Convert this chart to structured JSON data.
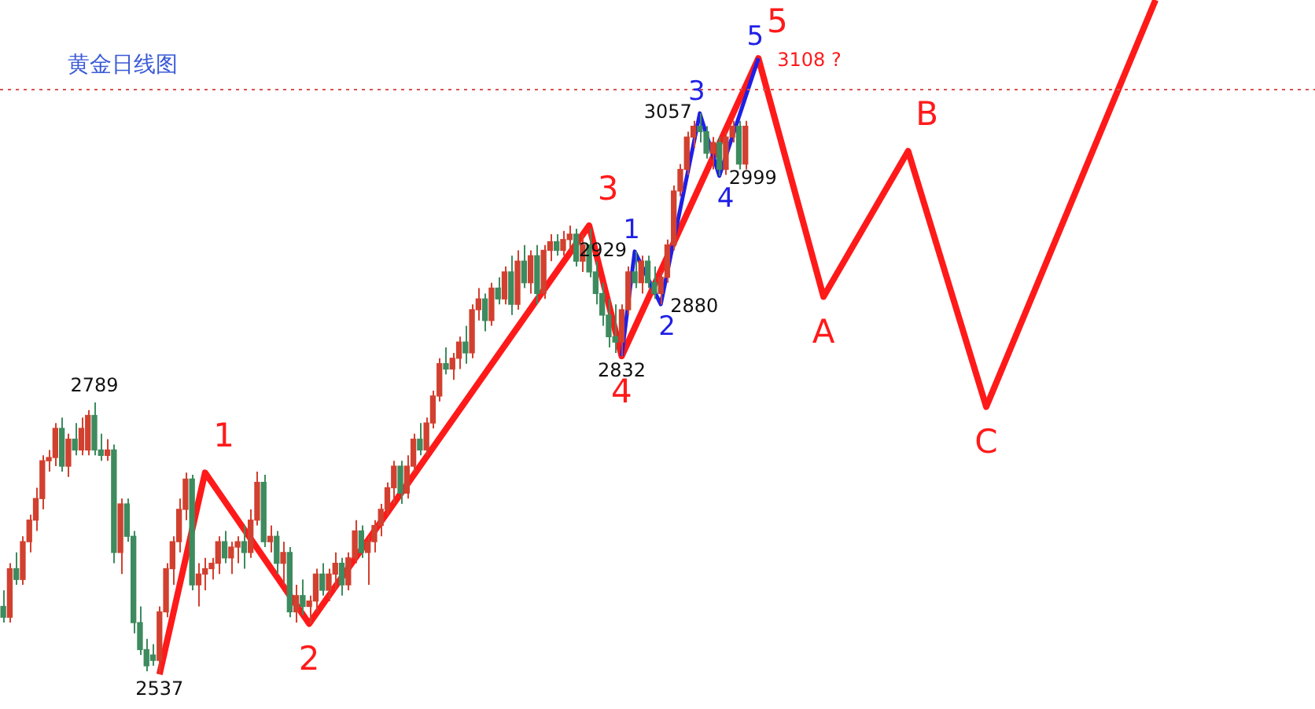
{
  "chart_data": {
    "type": "candlestick",
    "title": "黄金日线图",
    "categories": [
      null,
      null,
      null,
      null,
      null,
      null,
      null,
      null,
      null,
      null,
      null,
      null,
      null,
      null,
      null,
      null,
      null,
      null,
      null,
      null,
      null,
      null,
      null,
      null,
      null,
      null,
      null,
      null,
      null,
      null,
      null,
      null,
      null,
      null,
      null,
      null,
      null,
      null,
      null,
      null,
      null,
      null,
      null,
      null,
      null,
      null,
      null,
      null,
      null,
      null,
      null,
      null,
      null,
      null,
      null,
      null,
      null,
      null,
      null,
      null,
      null,
      null,
      null,
      null,
      null,
      null,
      null,
      null,
      null,
      null,
      null,
      null,
      null,
      null,
      null,
      null,
      null,
      null,
      null,
      null,
      null,
      null,
      null,
      null,
      null,
      null,
      null,
      null,
      null,
      null,
      null,
      null,
      null,
      null,
      null,
      null,
      null,
      null,
      null,
      null,
      null,
      null,
      null,
      null,
      null,
      null,
      null,
      null,
      null,
      null,
      null,
      null,
      null,
      null,
      null,
      null,
      null,
      null,
      null,
      null,
      null,
      null,
      null,
      null,
      null,
      null,
      null,
      null,
      null,
      null,
      null,
      null,
      null,
      null,
      null,
      null,
      null,
      null,
      null,
      null,
      null,
      null,
      null,
      null,
      null,
      null,
      null,
      null,
      null,
      null,
      null,
      null,
      null,
      null,
      null,
      null,
      null,
      null,
      null,
      null,
      null,
      null,
      null,
      null,
      null,
      null,
      null,
      null,
      null,
      null,
      null,
      null,
      null,
      null,
      null,
      null,
      null,
      null,
      null,
      null,
      null,
      null,
      null,
      null,
      null,
      null,
      null,
      null,
      null,
      null,
      null,
      null,
      null,
      null,
      null,
      null,
      null,
      null,
      null,
      null,
      null,
      null
    ],
    "ohlc": [
      [
        2600,
        2615,
        2585,
        2590
      ],
      [
        2590,
        2640,
        2585,
        2635
      ],
      [
        2635,
        2650,
        2620,
        2625
      ],
      [
        2625,
        2665,
        2620,
        2660
      ],
      [
        2660,
        2685,
        2650,
        2680
      ],
      [
        2680,
        2710,
        2670,
        2700
      ],
      [
        2700,
        2740,
        2690,
        2735
      ],
      [
        2735,
        2745,
        2725,
        2738
      ],
      [
        2738,
        2770,
        2730,
        2765
      ],
      [
        2765,
        2775,
        2725,
        2730
      ],
      [
        2730,
        2760,
        2720,
        2755
      ],
      [
        2755,
        2770,
        2740,
        2745
      ],
      [
        2745,
        2775,
        2740,
        2765
      ],
      [
        2745,
        2782,
        2740,
        2777
      ],
      [
        2777,
        2789,
        2740,
        2745
      ],
      [
        2745,
        2760,
        2735,
        2740
      ],
      [
        2740,
        2755,
        2735,
        2745
      ],
      [
        2745,
        2750,
        2640,
        2650
      ],
      [
        2650,
        2700,
        2630,
        2695
      ],
      [
        2695,
        2700,
        2660,
        2665
      ],
      [
        2665,
        2670,
        2575,
        2585
      ],
      [
        2585,
        2600,
        2555,
        2560
      ],
      [
        2560,
        2570,
        2540,
        2545
      ],
      [
        2555,
        2565,
        2545,
        2550
      ],
      [
        2550,
        2600,
        2537,
        2595
      ],
      [
        2595,
        2640,
        2590,
        2635
      ],
      [
        2635,
        2665,
        2620,
        2660
      ],
      [
        2660,
        2700,
        2650,
        2690
      ],
      [
        2690,
        2724,
        2680,
        2718
      ],
      [
        2718,
        2722,
        2615,
        2620
      ],
      [
        2620,
        2640,
        2600,
        2630
      ],
      [
        2630,
        2645,
        2615,
        2635
      ],
      [
        2635,
        2645,
        2625,
        2640
      ],
      [
        2640,
        2665,
        2630,
        2660
      ],
      [
        2660,
        2670,
        2640,
        2645
      ],
      [
        2645,
        2660,
        2630,
        2655
      ],
      [
        2655,
        2665,
        2640,
        2660
      ],
      [
        2660,
        2675,
        2635,
        2650
      ],
      [
        2650,
        2690,
        2645,
        2680
      ],
      [
        2680,
        2725,
        2675,
        2715
      ],
      [
        2715,
        2722,
        2655,
        2660
      ],
      [
        2660,
        2675,
        2650,
        2665
      ],
      [
        2665,
        2670,
        2630,
        2640
      ],
      [
        2640,
        2660,
        2620,
        2650
      ],
      [
        2650,
        2655,
        2590,
        2595
      ],
      [
        2595,
        2620,
        2585,
        2610
      ],
      [
        2610,
        2625,
        2592,
        2600
      ],
      [
        2600,
        2610,
        2584,
        2605
      ],
      [
        2605,
        2635,
        2595,
        2630
      ],
      [
        2630,
        2640,
        2610,
        2615
      ],
      [
        2615,
        2635,
        2605,
        2630
      ],
      [
        2630,
        2650,
        2615,
        2640
      ],
      [
        2640,
        2645,
        2610,
        2620
      ],
      [
        2620,
        2650,
        2615,
        2645
      ],
      [
        2645,
        2680,
        2640,
        2670
      ],
      [
        2670,
        2675,
        2645,
        2650
      ],
      [
        2650,
        2665,
        2620,
        2660
      ],
      [
        2660,
        2680,
        2650,
        2675
      ],
      [
        2675,
        2695,
        2665,
        2690
      ],
      [
        2690,
        2715,
        2685,
        2710
      ],
      [
        2710,
        2735,
        2695,
        2730
      ],
      [
        2730,
        2735,
        2695,
        2705
      ],
      [
        2705,
        2740,
        2700,
        2730
      ],
      [
        2730,
        2760,
        2725,
        2755
      ],
      [
        2755,
        2770,
        2740,
        2745
      ],
      [
        2745,
        2775,
        2740,
        2770
      ],
      [
        2770,
        2800,
        2765,
        2795
      ],
      [
        2795,
        2830,
        2790,
        2825
      ],
      [
        2825,
        2840,
        2815,
        2820
      ],
      [
        2820,
        2835,
        2810,
        2830
      ],
      [
        2830,
        2850,
        2820,
        2845
      ],
      [
        2845,
        2860,
        2825,
        2835
      ],
      [
        2835,
        2880,
        2830,
        2875
      ],
      [
        2875,
        2895,
        2865,
        2885
      ],
      [
        2885,
        2890,
        2855,
        2865
      ],
      [
        2865,
        2900,
        2860,
        2895
      ],
      [
        2895,
        2905,
        2880,
        2885
      ],
      [
        2885,
        2915,
        2880,
        2910
      ],
      [
        2910,
        2925,
        2870,
        2880
      ],
      [
        2880,
        2930,
        2875,
        2920
      ],
      [
        2920,
        2935,
        2895,
        2900
      ],
      [
        2900,
        2930,
        2890,
        2925
      ],
      [
        2925,
        2935,
        2880,
        2890
      ],
      [
        2890,
        2935,
        2885,
        2930
      ],
      [
        2930,
        2945,
        2920,
        2938
      ],
      [
        2938,
        2945,
        2925,
        2930
      ],
      [
        2930,
        2948,
        2925,
        2940
      ],
      [
        2940,
        2953,
        2930,
        2945
      ],
      [
        2945,
        2950,
        2915,
        2920
      ],
      [
        2920,
        2945,
        2910,
        2935
      ],
      [
        2935,
        2950,
        2905,
        2910
      ],
      [
        2910,
        2920,
        2880,
        2890
      ],
      [
        2890,
        2900,
        2860,
        2870
      ],
      [
        2870,
        2885,
        2840,
        2850
      ],
      [
        2850,
        2880,
        2835,
        2845
      ],
      [
        2845,
        2880,
        2832,
        2875
      ],
      [
        2875,
        2915,
        2870,
        2910
      ],
      [
        2910,
        2929,
        2895,
        2900
      ],
      [
        2900,
        2925,
        2890,
        2920
      ],
      [
        2920,
        2925,
        2895,
        2900
      ],
      [
        2900,
        2915,
        2885,
        2890
      ],
      [
        2890,
        2910,
        2880,
        2905
      ],
      [
        2905,
        2940,
        2900,
        2935
      ],
      [
        2935,
        2990,
        2930,
        2985
      ],
      [
        2985,
        3010,
        2980,
        3005
      ],
      [
        3005,
        3040,
        3000,
        3035
      ],
      [
        3035,
        3050,
        3025,
        3045
      ],
      [
        3045,
        3057,
        3030,
        3040
      ],
      [
        3040,
        3045,
        3015,
        3020
      ],
      [
        3020,
        3035,
        3005,
        3030
      ],
      [
        3030,
        3035,
        2999,
        3005
      ],
      [
        3005,
        3040,
        3000,
        3035
      ],
      [
        3035,
        3050,
        3030,
        3045
      ],
      [
        3045,
        3050,
        3005,
        3010
      ],
      [
        3010,
        3050,
        3005,
        3045
      ],
      null,
      null,
      null,
      null,
      null,
      null,
      null,
      null,
      null,
      null,
      null,
      null,
      null,
      null,
      null,
      null,
      null,
      null,
      null,
      null,
      null,
      null,
      null,
      null,
      null,
      null,
      null,
      null,
      null,
      null,
      null,
      null,
      null,
      null,
      null,
      null,
      null,
      null,
      null,
      null,
      null,
      null,
      null,
      null,
      null,
      null,
      null,
      null,
      null,
      null,
      null,
      null,
      null,
      null,
      null,
      null,
      null,
      null,
      null,
      null,
      null,
      null,
      null,
      null,
      null,
      null,
      null,
      null,
      null,
      null,
      null,
      null,
      null,
      null,
      null,
      null,
      null,
      null,
      null,
      null,
      null,
      null,
      null,
      null,
      null,
      null,
      null
    ],
    "colors": [
      "#3d8b5e",
      "#d2402f",
      "#3d8b5e",
      "#d2402f",
      "#d2402f",
      "#d2402f",
      "#d2402f",
      "#d2402f",
      "#d2402f",
      "#3d8b5e",
      "#d2402f",
      "#3d8b5e",
      "#d2402f",
      "#d2402f",
      "#3d8b5e",
      "#3d8b5e",
      "#d2402f",
      "#3d8b5e",
      "#d2402f",
      "#3d8b5e",
      "#3d8b5e",
      "#3d8b5e",
      "#3d8b5e",
      "#3d8b5e",
      "#d2402f",
      "#d2402f",
      "#d2402f",
      "#d2402f",
      "#d2402f",
      "#3d8b5e",
      "#d2402f",
      "#d2402f",
      "#d2402f",
      "#d2402f",
      "#3d8b5e",
      "#d2402f",
      "#d2402f",
      "#3d8b5e",
      "#d2402f",
      "#d2402f",
      "#3d8b5e",
      "#d2402f",
      "#3d8b5e",
      "#d2402f",
      "#3d8b5e",
      "#d2402f",
      "#3d8b5e",
      "#d2402f",
      "#d2402f",
      "#3d8b5e",
      "#d2402f",
      "#d2402f",
      "#3d8b5e",
      "#d2402f",
      "#d2402f",
      "#3d8b5e",
      "#d2402f",
      "#d2402f",
      "#d2402f",
      "#d2402f",
      "#d2402f",
      "#3d8b5e",
      "#d2402f",
      "#d2402f",
      "#3d8b5e",
      "#d2402f",
      "#d2402f",
      "#d2402f",
      "#3d8b5e",
      "#d2402f",
      "#d2402f",
      "#3d8b5e",
      "#d2402f",
      "#d2402f",
      "#3d8b5e",
      "#d2402f",
      "#3d8b5e",
      "#d2402f",
      "#3d8b5e",
      "#d2402f",
      "#3d8b5e",
      "#d2402f",
      "#3d8b5e",
      "#d2402f",
      "#d2402f",
      "#3d8b5e",
      "#d2402f",
      "#d2402f",
      "#3d8b5e",
      "#d2402f",
      "#3d8b5e",
      "#3d8b5e",
      "#3d8b5e",
      "#3d8b5e",
      "#3d8b5e",
      "#d2402f",
      "#d2402f",
      "#3d8b5e",
      "#d2402f",
      "#3d8b5e",
      "#3d8b5e",
      "#d2402f",
      "#d2402f",
      "#d2402f",
      "#d2402f",
      "#d2402f",
      "#d2402f",
      "#3d8b5e",
      "#3d8b5e",
      "#d2402f",
      "#3d8b5e",
      "#d2402f",
      "#d2402f",
      "#3d8b5e",
      "#d2402f",
      null,
      null,
      null,
      null,
      null,
      null,
      null,
      null,
      null,
      null,
      null,
      null,
      null,
      null,
      null,
      null,
      null,
      null,
      null,
      null,
      null,
      null,
      null,
      null,
      null,
      null,
      null,
      null,
      null,
      null,
      null,
      null,
      null,
      null,
      null,
      null,
      null,
      null,
      null,
      null,
      null,
      null,
      null,
      null,
      null,
      null,
      null,
      null,
      null,
      null,
      null,
      null,
      null,
      null,
      null,
      null,
      null,
      null,
      null,
      null,
      null,
      null,
      null,
      null,
      null,
      null,
      null,
      null,
      null,
      null,
      null,
      null,
      null,
      null,
      null,
      null,
      null,
      null,
      null,
      null,
      null,
      null,
      null,
      null,
      null,
      null,
      null
    ],
    "value_labels": [
      null,
      null,
      null,
      null,
      null,
      null,
      null,
      null,
      null,
      null,
      null,
      null,
      null,
      null,
      "2789",
      null,
      null,
      null,
      null,
      null,
      null,
      null,
      null,
      null,
      "2537",
      null,
      null,
      null,
      null,
      null,
      null,
      null,
      null,
      null,
      null,
      null,
      null,
      null,
      null,
      null,
      null,
      null,
      null,
      null,
      null,
      null,
      null,
      null,
      null,
      null,
      null,
      null,
      null,
      null,
      null,
      null,
      null,
      null,
      null,
      null,
      null,
      null,
      null,
      null,
      null,
      null,
      null,
      null,
      null,
      null,
      null,
      null,
      null,
      null,
      null,
      null,
      null,
      null,
      null,
      null,
      null,
      null,
      null,
      null,
      null,
      null,
      null,
      null,
      null,
      null,
      null,
      null,
      null,
      null,
      null,
      "2832",
      null,
      "2929",
      null,
      null,
      null,
      "2880",
      null,
      null,
      null,
      null,
      null,
      "3057",
      null,
      null,
      "2999",
      null,
      null,
      null,
      null,
      null,
      null,
      null,
      null,
      null,
      null,
      null,
      null,
      null,
      null,
      null,
      null,
      null,
      null,
      null,
      null,
      null,
      null,
      null,
      null,
      null,
      null,
      null,
      null,
      null,
      null,
      null,
      null,
      null,
      null,
      null,
      null,
      null,
      null,
      null,
      null,
      null,
      null,
      null,
      null,
      null,
      null,
      null,
      null,
      null,
      null,
      null,
      null,
      null,
      null,
      null,
      null,
      null,
      null,
      null,
      null,
      null,
      null,
      null,
      null,
      null,
      null,
      null,
      null,
      null,
      null,
      null,
      null,
      null,
      null,
      null,
      null,
      null,
      null,
      null,
      null,
      null,
      null,
      null,
      null,
      null,
      null,
      null,
      null,
      null,
      null,
      null
    ],
    "series": [
      {
        "type": "line",
        "color": "#ff1a1a",
        "values": [
          null,
          null,
          null,
          null,
          null,
          null,
          null,
          null,
          null,
          null,
          null,
          null,
          null,
          null,
          null,
          null,
          null,
          null,
          null,
          null,
          null,
          null,
          null,
          null,
          2537,
          null,
          null,
          null,
          null,
          null,
          null,
          2724,
          null,
          null,
          null,
          null,
          null,
          null,
          null,
          null,
          null,
          null,
          null,
          null,
          null,
          null,
          null,
          2584,
          null,
          null,
          null,
          null,
          null,
          null,
          null,
          null,
          null,
          null,
          null,
          null,
          null,
          null,
          null,
          null,
          null,
          null,
          null,
          null,
          null,
          null,
          null,
          null,
          null,
          null,
          null,
          null,
          null,
          null,
          null,
          null,
          null,
          null,
          null,
          null,
          null,
          null,
          null,
          null,
          null,
          null,
          2953,
          null,
          null,
          null,
          null,
          2832,
          null,
          null,
          null,
          null,
          null,
          null,
          null,
          null,
          null,
          null,
          null,
          null,
          null,
          null,
          null,
          null,
          null,
          null,
          null,
          null,
          3108,
          null,
          null,
          null,
          null,
          null,
          null,
          null,
          null,
          null,
          2887,
          null,
          null,
          null,
          null,
          null,
          null,
          null,
          null,
          null,
          null,
          null,
          null,
          3022,
          null,
          null,
          null,
          null,
          null,
          null,
          null,
          null,
          null,
          null,
          null,
          2785,
          null,
          null,
          null,
          null,
          null,
          null,
          null,
          null,
          null,
          null,
          null,
          null,
          null,
          null,
          null,
          null,
          null,
          null,
          null,
          null,
          null,
          null,
          null,
          null,
          null,
          3162,
          null,
          null,
          null,
          null,
          null,
          null,
          null,
          null,
          null,
          null,
          null,
          null,
          null,
          null,
          null,
          null,
          null,
          null,
          null,
          null,
          null,
          null,
          null,
          null
        ]
      },
      {
        "type": "line",
        "color": "#1f1fe6",
        "values": [
          null,
          null,
          null,
          null,
          null,
          null,
          null,
          null,
          null,
          null,
          null,
          null,
          null,
          null,
          null,
          null,
          null,
          null,
          null,
          null,
          null,
          null,
          null,
          null,
          null,
          null,
          null,
          null,
          null,
          null,
          null,
          null,
          null,
          null,
          null,
          null,
          null,
          null,
          null,
          null,
          null,
          null,
          null,
          null,
          null,
          null,
          null,
          null,
          null,
          null,
          null,
          null,
          null,
          null,
          null,
          null,
          null,
          null,
          null,
          null,
          null,
          null,
          null,
          null,
          null,
          null,
          null,
          null,
          null,
          null,
          null,
          null,
          null,
          null,
          null,
          null,
          null,
          null,
          null,
          null,
          null,
          null,
          null,
          null,
          null,
          null,
          null,
          null,
          null,
          null,
          null,
          null,
          null,
          null,
          null,
          2832,
          null,
          2929,
          null,
          null,
          null,
          2880,
          null,
          null,
          null,
          null,
          null,
          3057,
          null,
          null,
          2999,
          null,
          null,
          null,
          null,
          null,
          3108,
          null,
          null,
          null,
          null,
          null,
          null,
          null,
          null,
          null,
          null,
          null,
          null,
          null,
          null,
          null,
          null,
          null,
          null,
          null,
          null,
          null,
          null,
          null,
          null,
          null,
          null,
          null,
          null,
          null,
          null,
          null,
          null,
          null,
          null,
          null,
          null,
          null,
          null,
          null,
          null,
          null,
          null,
          null,
          null,
          null,
          null,
          null,
          null,
          null,
          null,
          null,
          null,
          null,
          null,
          null,
          null,
          null,
          null,
          null,
          null,
          null,
          null,
          null,
          null,
          null,
          null,
          null,
          null,
          null,
          null,
          null,
          null,
          null,
          null,
          null,
          null,
          null,
          null,
          null,
          null,
          null,
          null,
          null,
          null,
          null
        ]
      }
    ],
    "ref_lines": [
      {
        "axis": "y",
        "value": 3079,
        "color": "#d9534f",
        "line_style": "dotted"
      }
    ],
    "annotations": [
      "1",
      "2",
      "3",
      "4",
      "5",
      "A",
      "B",
      "C",
      "1",
      "2",
      "3",
      "4",
      "5",
      "3108 ?"
    ]
  }
}
